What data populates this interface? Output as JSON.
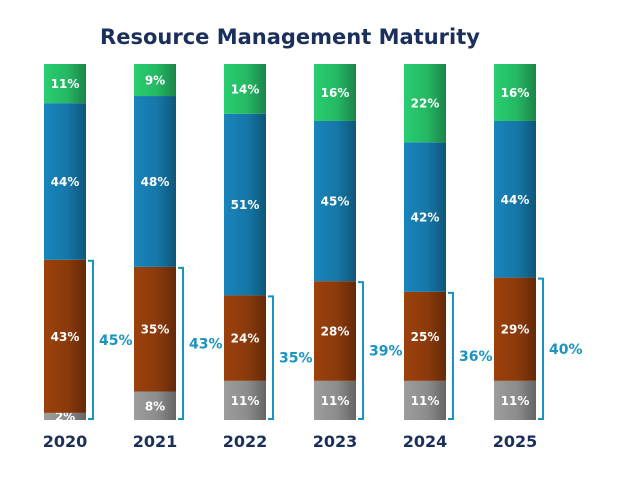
{
  "chart_data": {
    "type": "bar",
    "stacked": true,
    "title": "Resource Management Maturity",
    "categories": [
      "2020",
      "2021",
      "2022",
      "2023",
      "2024",
      "2025"
    ],
    "series": [
      {
        "color": "#8c8c8c",
        "values": [
          2,
          8,
          11,
          11,
          11,
          11
        ],
        "labels": [
          "2%",
          "8%",
          "11%",
          "11%",
          "11%",
          "11%"
        ]
      },
      {
        "color": "#8b3a0b",
        "values": [
          43,
          35,
          24,
          28,
          25,
          29
        ],
        "labels": [
          "43%",
          "35%",
          "24%",
          "28%",
          "25%",
          "29%"
        ]
      },
      {
        "color": "#1577a8",
        "values": [
          44,
          48,
          51,
          45,
          42,
          44
        ],
        "labels": [
          "44%",
          "48%",
          "51%",
          "45%",
          "42%",
          "44%"
        ]
      },
      {
        "color": "#25b864",
        "values": [
          11,
          9,
          14,
          16,
          22,
          16
        ],
        "labels": [
          "11%",
          "9%",
          "14%",
          "16%",
          "22%",
          "16%"
        ]
      }
    ],
    "brace_totals": {
      "values": [
        45,
        43,
        35,
        39,
        36,
        40
      ],
      "labels": [
        "45%",
        "43%",
        "35%",
        "39%",
        "36%",
        "40%"
      ],
      "color": "#1a93c0"
    },
    "ylim": [
      0,
      100
    ],
    "grid": false,
    "legend": false
  }
}
